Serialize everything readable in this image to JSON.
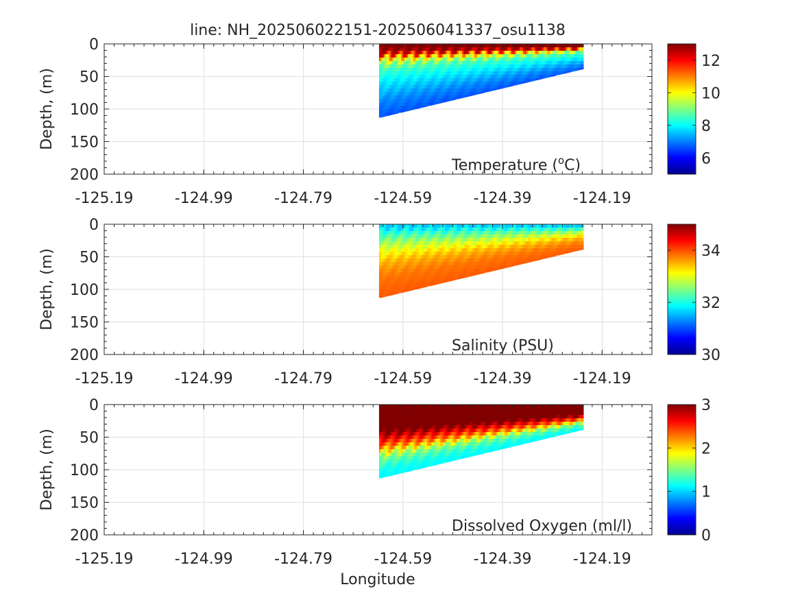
{
  "chart_data": {
    "type": "heatmap",
    "title": "line: NH_202506022151-202506041337_osu1138",
    "xlabel": "Longitude",
    "xlim": [
      -125.19,
      -124.09
    ],
    "xticks": [
      "-125.19",
      "-124.99",
      "-124.79",
      "-124.59",
      "-124.39",
      "-124.19"
    ],
    "xtick_values": [
      -125.19,
      -124.99,
      -124.79,
      -124.59,
      -124.39,
      -124.19
    ],
    "grid": true,
    "colormap": "jet",
    "section": {
      "lon_start": -124.635,
      "lon_end": -124.23,
      "bottom_depth_start": 112,
      "bottom_depth_end": 38
    },
    "panels": [
      {
        "variable": "Temperature",
        "label_main": "Temperature (",
        "label_sup": "o",
        "label_end": "C)",
        "ylabel": "Depth, (m)",
        "ylim": [
          0,
          200
        ],
        "yticks": [
          "0",
          "50",
          "100",
          "150",
          "200"
        ],
        "ytick_values": [
          0,
          50,
          100,
          150,
          200
        ],
        "clim": [
          5,
          13
        ],
        "cticks": [
          "6",
          "8",
          "10",
          "12"
        ],
        "ctick_values": [
          6,
          8,
          10,
          12
        ],
        "profile": [
          {
            "frac": 0.0,
            "value": 13
          },
          {
            "frac": 0.1,
            "value": 12.5
          },
          {
            "frac": 0.18,
            "value": 10.2
          },
          {
            "frac": 0.3,
            "value": 8.6
          },
          {
            "frac": 0.5,
            "value": 7.9
          },
          {
            "frac": 0.75,
            "value": 7.1
          },
          {
            "frac": 1.0,
            "value": 6.6
          }
        ]
      },
      {
        "variable": "Salinity",
        "label_main": "Salinity (PSU)",
        "ylabel": "Depth, (m)",
        "ylim": [
          0,
          200
        ],
        "yticks": [
          "0",
          "50",
          "100",
          "150",
          "200"
        ],
        "ytick_values": [
          0,
          50,
          100,
          150,
          200
        ],
        "clim": [
          30,
          35
        ],
        "cticks": [
          "30",
          "32",
          "34"
        ],
        "ctick_values": [
          30,
          32,
          34
        ],
        "profile": [
          {
            "frac": 0.0,
            "value": 31.6
          },
          {
            "frac": 0.12,
            "value": 32.2
          },
          {
            "frac": 0.3,
            "value": 32.9
          },
          {
            "frac": 0.5,
            "value": 33.5
          },
          {
            "frac": 0.7,
            "value": 33.8
          },
          {
            "frac": 1.0,
            "value": 33.95
          }
        ]
      },
      {
        "variable": "Dissolved Oxygen",
        "label_main": "Dissolved Oxygen (ml/l)",
        "ylabel": "Depth, (m)",
        "ylim": [
          0,
          200
        ],
        "yticks": [
          "0",
          "50",
          "100",
          "150",
          "200"
        ],
        "ytick_values": [
          0,
          50,
          100,
          150,
          200
        ],
        "clim": [
          0,
          3
        ],
        "cticks": [
          "0",
          "1",
          "2",
          "3"
        ],
        "ctick_values": [
          0,
          1,
          2,
          3
        ],
        "profile": [
          {
            "frac": 0.0,
            "value": 3.0
          },
          {
            "frac": 0.35,
            "value": 3.0
          },
          {
            "frac": 0.55,
            "value": 2.3
          },
          {
            "frac": 0.7,
            "value": 1.5
          },
          {
            "frac": 0.85,
            "value": 1.2
          },
          {
            "frac": 1.0,
            "value": 1.1
          }
        ]
      }
    ]
  }
}
